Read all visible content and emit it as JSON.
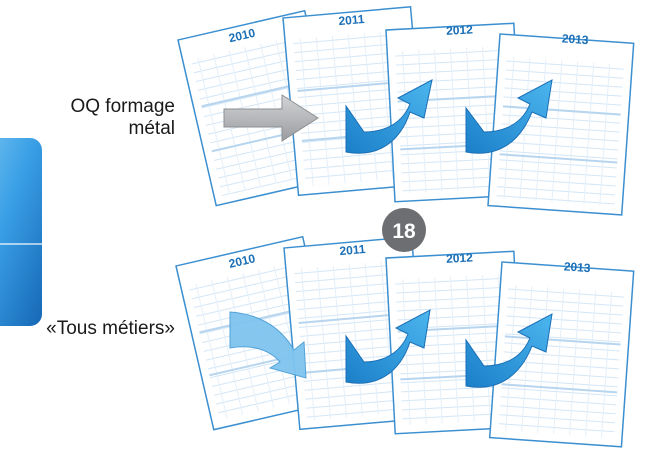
{
  "labels": {
    "top_line1": "OQ formage",
    "top_line2": "métal",
    "bottom": "«Tous métiers»"
  },
  "badge": {
    "text": "18",
    "color": "#6d6e71"
  },
  "calendar_years": [
    "2010",
    "2011",
    "2012",
    "2013"
  ],
  "colors": {
    "blue_accent": "#2b9fdc",
    "blue_dark": "#1b6fb6",
    "grey_arrow": "#a9abae",
    "calendar_border": "#3b8fd0",
    "side_panel": "#2f8ed8"
  }
}
